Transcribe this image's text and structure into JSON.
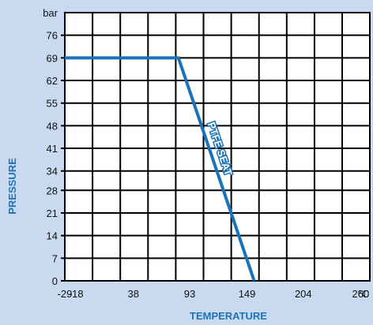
{
  "chart_data": {
    "type": "line",
    "xlabel": "TEMPERATURE",
    "ylabel": "PRESSURE",
    "x_unit": "°C",
    "y_unit": "bar",
    "x_ticks": [
      -29,
      -18,
      38,
      93,
      149,
      204,
      260
    ],
    "x_gridlines": [
      -29,
      -1.9,
      25.2,
      52.3,
      79.4,
      106.5,
      133.6,
      160.7,
      187.8,
      214.9,
      242,
      269
    ],
    "y_ticks": [
      0,
      7,
      14,
      21,
      28,
      34,
      41,
      48,
      55,
      62,
      69,
      76
    ],
    "xlim": [
      -29,
      269
    ],
    "ylim": [
      0,
      83
    ],
    "grid": true,
    "series": [
      {
        "name": "PTFE SEAT",
        "x": [
          -29,
          82,
          156
        ],
        "y": [
          69,
          69,
          0
        ],
        "color": "#1a73b8"
      }
    ],
    "colors": {
      "background": "#c9daf0",
      "plot_bg": "#ffffff",
      "grid": "#000000",
      "accent": "#1a73b8"
    }
  }
}
